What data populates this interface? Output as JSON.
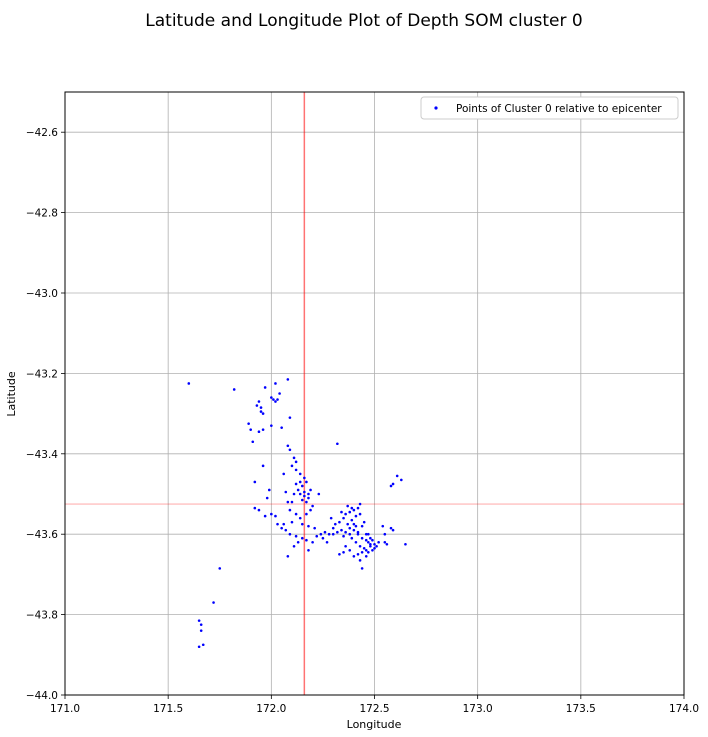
{
  "chart_data": {
    "type": "scatter",
    "title": "Latitude and Longitude Plot of Depth SOM cluster 0",
    "xlabel": "Longitude",
    "ylabel": "Latitude",
    "xlim": [
      171.0,
      174.0
    ],
    "ylim": [
      -44.0,
      -42.5
    ],
    "xticks": [
      "171.0",
      "171.5",
      "172.0",
      "172.5",
      "173.0",
      "173.5",
      "174.0"
    ],
    "yticks": [
      "−42.6",
      "−42.8",
      "−43.0",
      "−43.2",
      "−43.4",
      "−43.6",
      "−43.8",
      "−44.0"
    ],
    "ytick_values": [
      -42.6,
      -42.8,
      -43.0,
      -43.2,
      -43.4,
      -43.6,
      -43.8,
      -44.0
    ],
    "xtick_values": [
      171.0,
      171.5,
      172.0,
      172.5,
      173.0,
      173.5,
      174.0
    ],
    "grid": true,
    "legend": {
      "position": "top-right",
      "entries": [
        "Points of Cluster 0 relative to epicenter"
      ]
    },
    "epicenter": {
      "x": 172.16,
      "y": -43.525
    },
    "series": [
      {
        "name": "Points of Cluster 0 relative to epicenter",
        "color": "#0000ff",
        "points": [
          [
            171.6,
            -43.225
          ],
          [
            171.82,
            -43.24
          ],
          [
            171.93,
            -43.28
          ],
          [
            171.95,
            -43.295
          ],
          [
            171.96,
            -43.3
          ],
          [
            171.95,
            -43.285
          ],
          [
            171.94,
            -43.27
          ],
          [
            171.97,
            -43.235
          ],
          [
            172.0,
            -43.26
          ],
          [
            172.01,
            -43.265
          ],
          [
            172.02,
            -43.27
          ],
          [
            172.03,
            -43.265
          ],
          [
            172.04,
            -43.25
          ],
          [
            172.02,
            -43.225
          ],
          [
            172.08,
            -43.215
          ],
          [
            172.09,
            -43.31
          ],
          [
            171.89,
            -43.325
          ],
          [
            171.9,
            -43.34
          ],
          [
            171.91,
            -43.37
          ],
          [
            171.94,
            -43.345
          ],
          [
            171.96,
            -43.34
          ],
          [
            172.0,
            -43.33
          ],
          [
            172.05,
            -43.335
          ],
          [
            172.08,
            -43.38
          ],
          [
            172.09,
            -43.39
          ],
          [
            172.11,
            -43.41
          ],
          [
            172.12,
            -43.42
          ],
          [
            172.1,
            -43.43
          ],
          [
            172.12,
            -43.44
          ],
          [
            172.14,
            -43.45
          ],
          [
            172.16,
            -43.46
          ],
          [
            172.17,
            -43.47
          ],
          [
            172.15,
            -43.48
          ],
          [
            172.13,
            -43.49
          ],
          [
            172.14,
            -43.5
          ],
          [
            172.16,
            -43.505
          ],
          [
            172.18,
            -43.51
          ],
          [
            172.17,
            -43.52
          ],
          [
            172.15,
            -43.515
          ],
          [
            172.16,
            -43.495
          ],
          [
            172.19,
            -43.49
          ],
          [
            172.18,
            -43.5
          ],
          [
            172.14,
            -43.47
          ],
          [
            172.12,
            -43.475
          ],
          [
            172.11,
            -43.5
          ],
          [
            172.1,
            -43.52
          ],
          [
            172.09,
            -43.54
          ],
          [
            172.12,
            -43.55
          ],
          [
            172.14,
            -43.56
          ],
          [
            172.17,
            -43.55
          ],
          [
            172.19,
            -43.54
          ],
          [
            172.2,
            -43.53
          ],
          [
            172.23,
            -43.5
          ],
          [
            172.15,
            -43.575
          ],
          [
            172.18,
            -43.58
          ],
          [
            172.1,
            -43.57
          ],
          [
            172.06,
            -43.575
          ],
          [
            172.05,
            -43.585
          ],
          [
            172.07,
            -43.59
          ],
          [
            172.09,
            -43.6
          ],
          [
            172.12,
            -43.605
          ],
          [
            172.15,
            -43.61
          ],
          [
            172.17,
            -43.615
          ],
          [
            172.13,
            -43.62
          ],
          [
            172.11,
            -43.63
          ],
          [
            172.08,
            -43.655
          ],
          [
            172.18,
            -43.64
          ],
          [
            172.2,
            -43.62
          ],
          [
            172.22,
            -43.605
          ],
          [
            172.24,
            -43.6
          ],
          [
            172.26,
            -43.595
          ],
          [
            172.28,
            -43.6
          ],
          [
            172.25,
            -43.61
          ],
          [
            172.27,
            -43.62
          ],
          [
            172.3,
            -43.6
          ],
          [
            172.32,
            -43.595
          ],
          [
            172.34,
            -43.59
          ],
          [
            172.31,
            -43.575
          ],
          [
            172.29,
            -43.56
          ],
          [
            172.33,
            -43.57
          ],
          [
            172.35,
            -43.56
          ],
          [
            172.36,
            -43.55
          ],
          [
            172.38,
            -43.545
          ],
          [
            172.4,
            -43.54
          ],
          [
            172.42,
            -43.535
          ],
          [
            172.43,
            -43.525
          ],
          [
            172.41,
            -43.555
          ],
          [
            172.39,
            -43.565
          ],
          [
            172.37,
            -43.575
          ],
          [
            172.38,
            -43.585
          ],
          [
            172.4,
            -43.59
          ],
          [
            172.42,
            -43.595
          ],
          [
            172.44,
            -43.58
          ],
          [
            172.45,
            -43.57
          ],
          [
            172.46,
            -43.6
          ],
          [
            172.48,
            -43.61
          ],
          [
            172.47,
            -43.62
          ],
          [
            172.49,
            -43.615
          ],
          [
            172.5,
            -43.625
          ],
          [
            172.48,
            -43.63
          ],
          [
            172.46,
            -43.64
          ],
          [
            172.44,
            -43.645
          ],
          [
            172.42,
            -43.65
          ],
          [
            172.4,
            -43.655
          ],
          [
            172.38,
            -43.64
          ],
          [
            172.36,
            -43.63
          ],
          [
            172.35,
            -43.645
          ],
          [
            172.33,
            -43.65
          ],
          [
            172.39,
            -43.61
          ],
          [
            172.41,
            -43.62
          ],
          [
            172.43,
            -43.63
          ],
          [
            172.45,
            -43.635
          ],
          [
            172.47,
            -43.645
          ],
          [
            172.49,
            -43.64
          ],
          [
            172.51,
            -43.63
          ],
          [
            172.52,
            -43.62
          ],
          [
            172.43,
            -43.665
          ],
          [
            172.44,
            -43.685
          ],
          [
            172.46,
            -43.655
          ],
          [
            172.55,
            -43.6
          ],
          [
            172.54,
            -43.58
          ],
          [
            172.55,
            -43.62
          ],
          [
            172.56,
            -43.625
          ],
          [
            172.58,
            -43.585
          ],
          [
            172.59,
            -43.59
          ],
          [
            172.58,
            -43.48
          ],
          [
            172.59,
            -43.475
          ],
          [
            172.61,
            -43.455
          ],
          [
            172.63,
            -43.465
          ],
          [
            172.65,
            -43.625
          ],
          [
            172.32,
            -43.375
          ],
          [
            171.92,
            -43.47
          ],
          [
            171.92,
            -43.535
          ],
          [
            171.94,
            -43.54
          ],
          [
            171.97,
            -43.555
          ],
          [
            171.98,
            -43.51
          ],
          [
            171.99,
            -43.49
          ],
          [
            172.0,
            -43.55
          ],
          [
            172.02,
            -43.555
          ],
          [
            172.03,
            -43.575
          ],
          [
            171.96,
            -43.43
          ],
          [
            171.72,
            -43.77
          ],
          [
            171.75,
            -43.685
          ],
          [
            171.65,
            -43.815
          ],
          [
            171.66,
            -43.825
          ],
          [
            171.66,
            -43.84
          ],
          [
            171.67,
            -43.875
          ],
          [
            171.65,
            -43.88
          ],
          [
            172.07,
            -43.495
          ],
          [
            172.06,
            -43.45
          ],
          [
            172.08,
            -43.52
          ],
          [
            172.21,
            -43.585
          ],
          [
            172.37,
            -43.53
          ],
          [
            172.4,
            -43.575
          ],
          [
            172.42,
            -43.6
          ],
          [
            172.38,
            -43.6
          ],
          [
            172.36,
            -43.595
          ],
          [
            172.35,
            -43.605
          ],
          [
            172.41,
            -43.58
          ],
          [
            172.44,
            -43.61
          ],
          [
            172.46,
            -43.615
          ],
          [
            172.48,
            -43.625
          ],
          [
            172.5,
            -43.635
          ],
          [
            172.47,
            -43.6
          ],
          [
            172.43,
            -43.55
          ],
          [
            172.39,
            -43.535
          ],
          [
            172.34,
            -43.545
          ],
          [
            172.3,
            -43.585
          ]
        ]
      }
    ]
  }
}
